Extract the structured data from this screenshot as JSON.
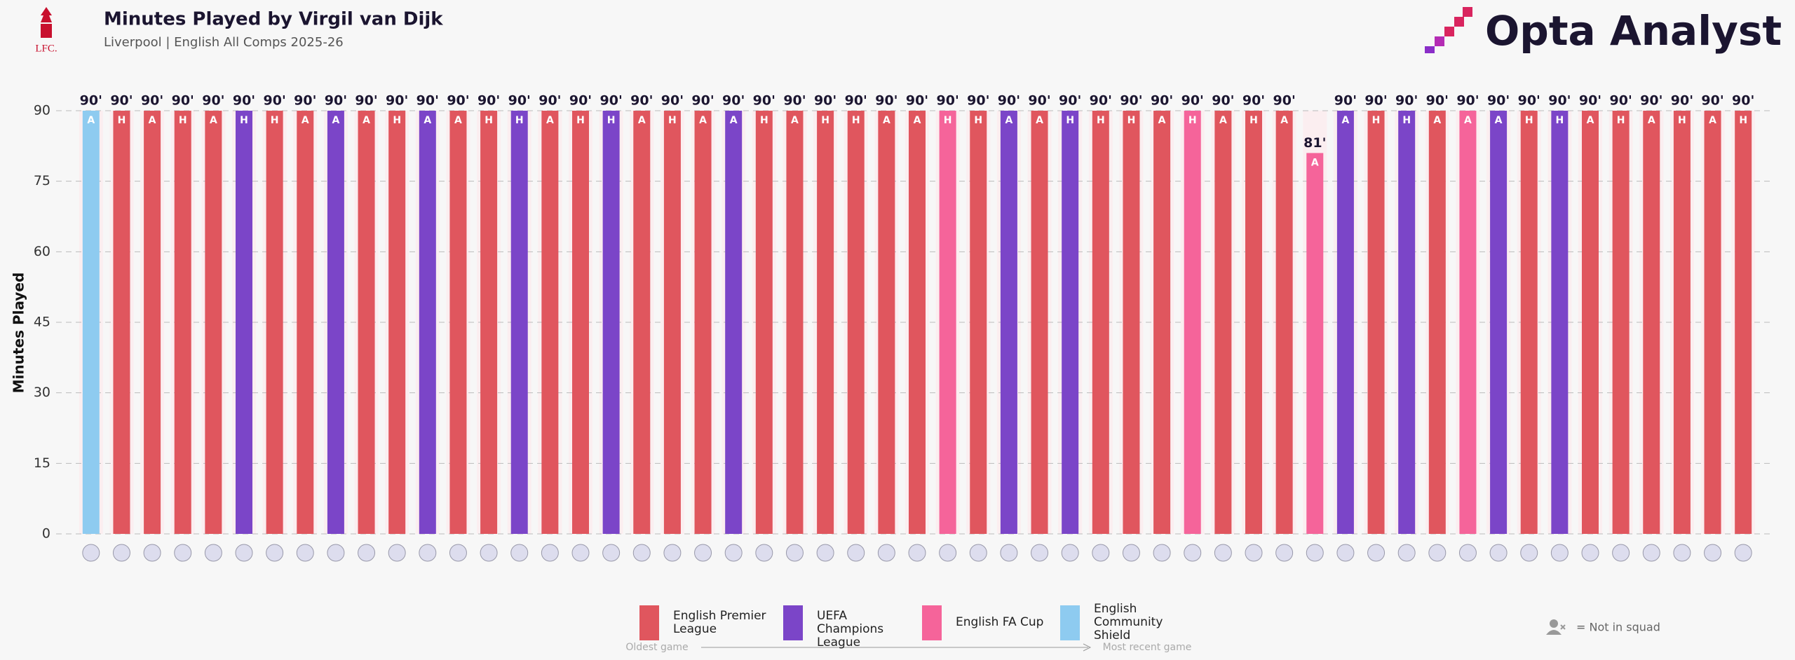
{
  "chart_data": {
    "type": "bar",
    "title": "Minutes Played by Virgil van Dijk",
    "subtitle": "Liverpool | English All Comps 2025-26",
    "brand": "Opta Analyst",
    "crest": "LFC.",
    "y_label": "Minutes Played",
    "ylim": [
      0,
      90
    ],
    "yticks": [
      0,
      15,
      30,
      45,
      60,
      75,
      90
    ],
    "grid": true,
    "values": [
      90,
      90,
      90,
      90,
      90,
      90,
      90,
      90,
      90,
      90,
      90,
      90,
      90,
      90,
      90,
      90,
      90,
      90,
      90,
      90,
      90,
      90,
      90,
      90,
      90,
      90,
      90,
      90,
      90,
      90,
      90,
      90,
      90,
      90,
      90,
      90,
      90,
      90,
      90,
      90,
      81,
      90,
      90,
      90,
      90,
      90,
      90,
      90,
      90,
      90,
      90,
      90,
      90,
      90,
      90
    ],
    "value_labels": [
      "90'",
      "90'",
      "90'",
      "90'",
      "90'",
      "90'",
      "90'",
      "90'",
      "90'",
      "90'",
      "90'",
      "90'",
      "90'",
      "90'",
      "90'",
      "90'",
      "90'",
      "90'",
      "90'",
      "90'",
      "90'",
      "90'",
      "90'",
      "90'",
      "90'",
      "90'",
      "90'",
      "90'",
      "90'",
      "90'",
      "90'",
      "90'",
      "90'",
      "90'",
      "90'",
      "90'",
      "90'",
      "90'",
      "90'",
      "90'",
      "81'",
      "90'",
      "90'",
      "90'",
      "90'",
      "90'",
      "90'",
      "90'",
      "90'",
      "90'",
      "90'",
      "90'",
      "90'",
      "90'",
      "90'"
    ],
    "venues": [
      "A",
      "H",
      "A",
      "H",
      "A",
      "H",
      "H",
      "A",
      "A",
      "A",
      "H",
      "A",
      "A",
      "H",
      "H",
      "A",
      "H",
      "H",
      "A",
      "H",
      "A",
      "A",
      "H",
      "A",
      "H",
      "H",
      "A",
      "A",
      "H",
      "H",
      "A",
      "A",
      "H",
      "H",
      "H",
      "A",
      "H",
      "A",
      "H",
      "A",
      "A",
      "A",
      "H",
      "H",
      "A",
      "A",
      "A",
      "H",
      "H",
      "A",
      "H",
      "A",
      "H",
      "A",
      "H"
    ],
    "colors": [
      "#8ecbf0",
      "#e0565e",
      "#e0565e",
      "#e0565e",
      "#e0565e",
      "#7b45c8",
      "#e0565e",
      "#e0565e",
      "#7b45c8",
      "#e0565e",
      "#e0565e",
      "#7b45c8",
      "#e0565e",
      "#e0565e",
      "#7b45c8",
      "#e0565e",
      "#e0565e",
      "#7b45c8",
      "#e0565e",
      "#e0565e",
      "#e0565e",
      "#7b45c8",
      "#e0565e",
      "#e0565e",
      "#e0565e",
      "#e0565e",
      "#e0565e",
      "#e0565e",
      "#f5649a",
      "#e0565e",
      "#7b45c8",
      "#e0565e",
      "#7b45c8",
      "#e0565e",
      "#e0565e",
      "#e0565e",
      "#f5649a",
      "#e0565e",
      "#e0565e",
      "#e0565e",
      "#f5649a",
      "#7b45c8",
      "#e0565e",
      "#7b45c8",
      "#e0565e",
      "#f5649a",
      "#7b45c8",
      "#e0565e",
      "#7b45c8",
      "#e0565e",
      "#e0565e",
      "#e0565e",
      "#e0565e",
      "#e0565e",
      "#e0565e"
    ],
    "legend": [
      {
        "name": "English Premier League",
        "color": "#e0565e"
      },
      {
        "name": "UEFA Champions League",
        "color": "#7b45c8"
      },
      {
        "name": "English FA Cup",
        "color": "#f5649a"
      },
      {
        "name": "English Community Shield",
        "color": "#8ecbf0"
      }
    ],
    "oldest_label": "Oldest game",
    "recent_label": "Most recent game",
    "not_in_squad": "= Not in squad"
  }
}
